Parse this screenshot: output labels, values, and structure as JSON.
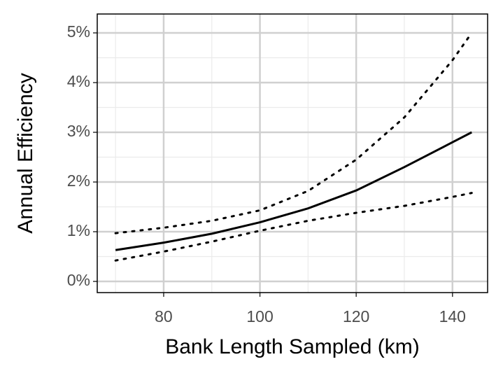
{
  "chart_data": {
    "type": "line",
    "x_label": "Bank Length Sampled (km)",
    "y_label": "Annual Efficiency",
    "x": [
      70,
      80,
      90,
      100,
      110,
      120,
      130,
      140,
      144
    ],
    "series": [
      {
        "color": "#000000",
        "dash": "solid",
        "values": [
          0.63,
          0.78,
          0.96,
          1.19,
          1.47,
          1.83,
          2.3,
          2.8,
          3.0
        ]
      },
      {
        "color": "#000000",
        "dash": "dotted",
        "values": [
          0.97,
          1.08,
          1.22,
          1.43,
          1.82,
          2.45,
          3.3,
          4.45,
          5.0
        ]
      },
      {
        "color": "#000000",
        "dash": "dotted",
        "values": [
          0.42,
          0.6,
          0.8,
          1.02,
          1.22,
          1.38,
          1.52,
          1.7,
          1.78
        ]
      }
    ],
    "xlim": [
      66.2,
      147.3
    ],
    "ylim": [
      -0.225,
      5.38
    ],
    "xticks": [
      80,
      100,
      120,
      140
    ],
    "yticks": [
      {
        "value": 0,
        "label": "0%"
      },
      {
        "value": 1,
        "label": "1%"
      },
      {
        "value": 2,
        "label": "2%"
      },
      {
        "value": 3,
        "label": "3%"
      },
      {
        "value": 4,
        "label": "4%"
      },
      {
        "value": 5,
        "label": "5%"
      }
    ],
    "xminorticks": [
      70,
      90,
      110,
      130
    ],
    "yminorticks": [
      0.5,
      1.5,
      2.5,
      3.5,
      4.5
    ],
    "grid": true
  }
}
